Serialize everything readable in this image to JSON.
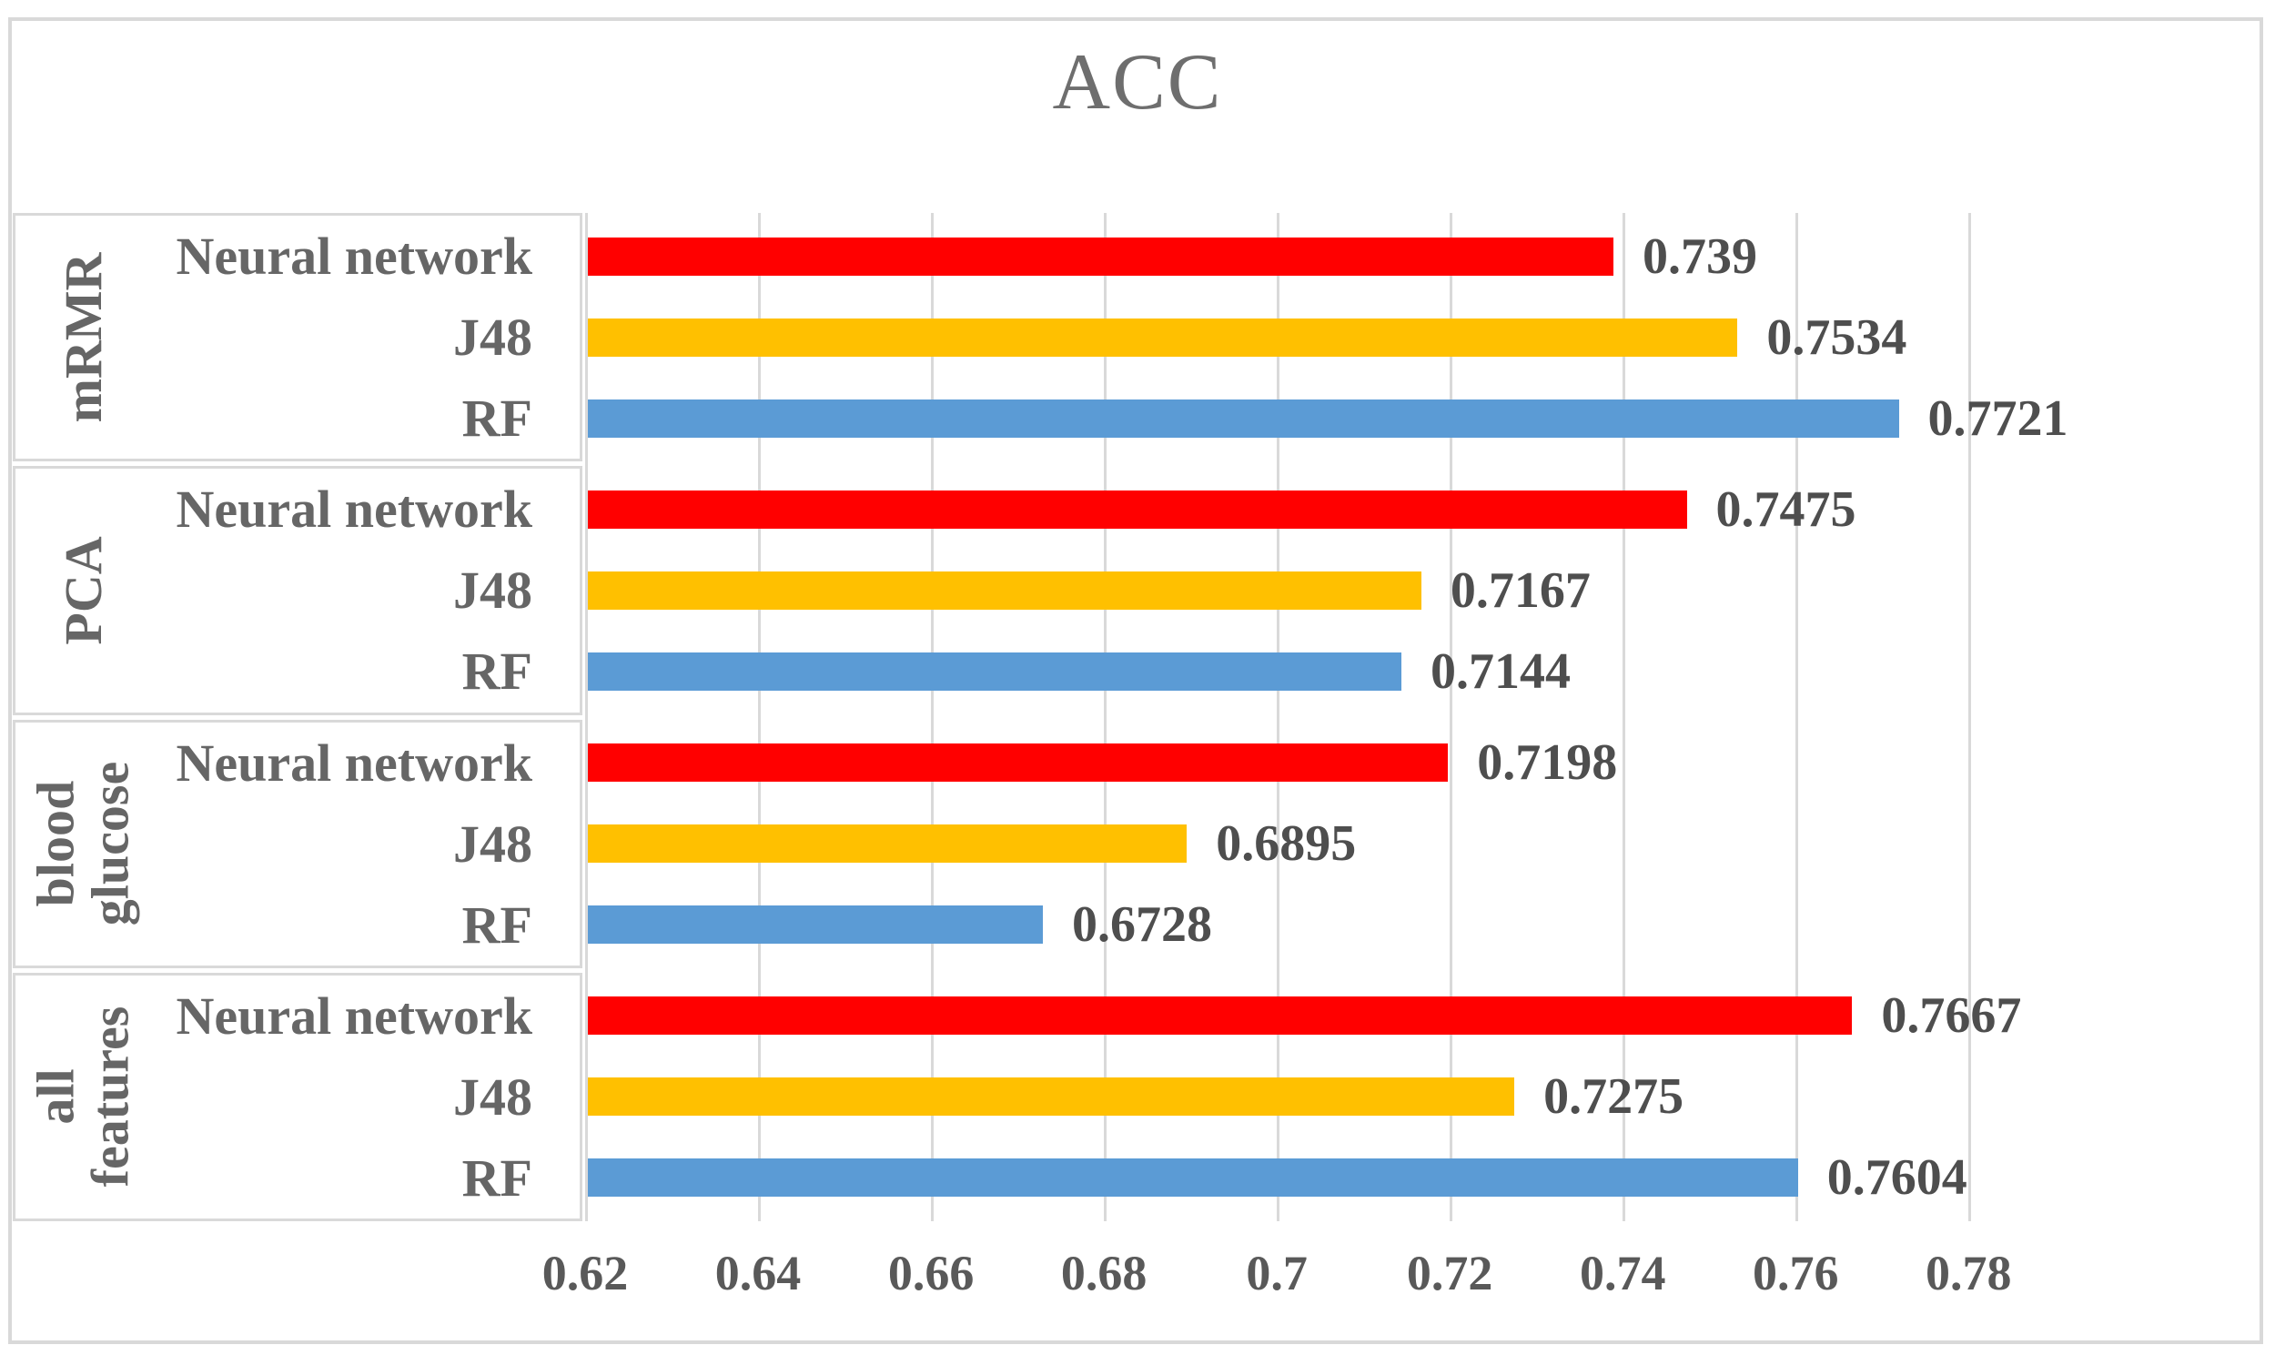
{
  "title": "ACC",
  "colors": {
    "series_red": "#FF0000",
    "series_yellow": "#FFC000",
    "series_blue": "#5B9BD5",
    "gridline": "#D9D9D9",
    "frame_border": "#D9D9D9",
    "label_text": "#666666",
    "value_text": "#4E4E4E",
    "title_text": "#6E6E6E"
  },
  "chart_data": {
    "type": "bar",
    "orientation": "horizontal",
    "title": "ACC",
    "xlabel": "",
    "ylabel": "",
    "grid": "vertical",
    "legend": "none",
    "x_axis": {
      "min": 0.62,
      "max": 0.78,
      "step": 0.02,
      "ticks": [
        "0.62",
        "0.64",
        "0.66",
        "0.68",
        "0.7",
        "0.72",
        "0.74",
        "0.76",
        "0.78"
      ]
    },
    "groups": [
      {
        "label": "mRMR",
        "bars": [
          {
            "series": "Neural network",
            "value": 0.739,
            "label": "0.739",
            "color": "#FF0000"
          },
          {
            "series": "J48",
            "value": 0.7534,
            "label": "0.7534",
            "color": "#FFC000"
          },
          {
            "series": "RF",
            "value": 0.7721,
            "label": "0.7721",
            "color": "#5B9BD5"
          }
        ]
      },
      {
        "label": "PCA",
        "bars": [
          {
            "series": "Neural network",
            "value": 0.7475,
            "label": "0.7475",
            "color": "#FF0000"
          },
          {
            "series": "J48",
            "value": 0.7167,
            "label": "0.7167",
            "color": "#FFC000"
          },
          {
            "series": "RF",
            "value": 0.7144,
            "label": "0.7144",
            "color": "#5B9BD5"
          }
        ]
      },
      {
        "label": "blood\nglucose",
        "bars": [
          {
            "series": "Neural network",
            "value": 0.7198,
            "label": "0.7198",
            "color": "#FF0000"
          },
          {
            "series": "J48",
            "value": 0.6895,
            "label": "0.6895",
            "color": "#FFC000"
          },
          {
            "series": "RF",
            "value": 0.6728,
            "label": "0.6728",
            "color": "#5B9BD5"
          }
        ]
      },
      {
        "label": "all\nfeatures",
        "bars": [
          {
            "series": "Neural network",
            "value": 0.7667,
            "label": "0.7667",
            "color": "#FF0000"
          },
          {
            "series": "J48",
            "value": 0.7275,
            "label": "0.7275",
            "color": "#FFC000"
          },
          {
            "series": "RF",
            "value": 0.7604,
            "label": "0.7604",
            "color": "#5B9BD5"
          }
        ]
      }
    ]
  }
}
